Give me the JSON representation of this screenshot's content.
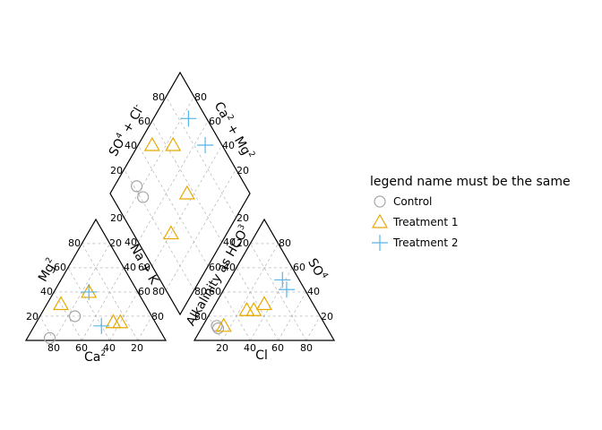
{
  "chart_data": {
    "type": "scatter",
    "subtype": "piper",
    "ticks": [
      "20",
      "40",
      "60",
      "80"
    ],
    "axes": {
      "cation_x": {
        "text": "Ca",
        "sup": "2"
      },
      "cation_y": {
        "text": "Mg",
        "sup": "2"
      },
      "cation_diag": {
        "text": "Na + K",
        "sup": ""
      },
      "anion_x": {
        "text": "Cl",
        "sup": ""
      },
      "anion_y": {
        "text": "SO",
        "sup": "4"
      },
      "anion_diag": {
        "text": "Alkalinity as HCO",
        "sup": "3"
      },
      "diamond_left": {
        "text": "SO",
        "sup": "4",
        "rest": " + Cl",
        "sup2": "-"
      },
      "diamond_right": {
        "text": "Ca",
        "sup": "2",
        "rest": " + Mg",
        "sup2": "2"
      }
    },
    "legend": {
      "title": "legend name must be the same",
      "entries": [
        {
          "label": "Control",
          "shape": "circle",
          "color": "#a6a6a6"
        },
        {
          "label": "Treatment 1",
          "shape": "triangle",
          "color": "#e8a800"
        },
        {
          "label": "Treatment 2",
          "shape": "cross",
          "color": "#56b4e9"
        }
      ]
    },
    "series": [
      {
        "name": "Control",
        "points": [
          {
            "ca": 82,
            "mg": 2,
            "cl": 10,
            "so4": 12
          },
          {
            "ca": 55,
            "mg": 20,
            "cl": 12,
            "so4": 10
          }
        ]
      },
      {
        "name": "Treatment 1",
        "points": [
          {
            "ca": 60,
            "mg": 30,
            "cl": 25,
            "so4": 25
          },
          {
            "ca": 35,
            "mg": 40,
            "cl": 35,
            "so4": 30
          },
          {
            "ca": 30,
            "mg": 15,
            "cl": 30,
            "so4": 25
          },
          {
            "ca": 25,
            "mg": 15,
            "cl": 15,
            "so4": 12
          }
        ]
      },
      {
        "name": "Treatment 2",
        "points": [
          {
            "ca": 40,
            "mg": 12,
            "cl": 38,
            "so4": 50
          },
          {
            "ca": 35,
            "mg": 40,
            "cl": 45,
            "so4": 42
          }
        ]
      }
    ]
  }
}
